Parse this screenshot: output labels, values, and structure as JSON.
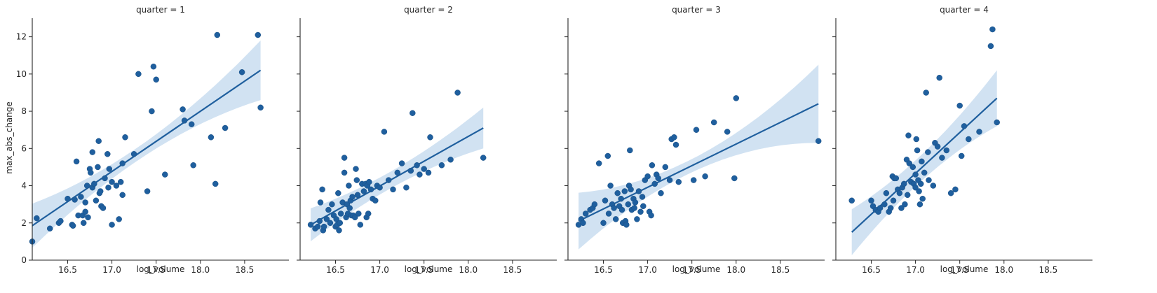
{
  "chart_data": {
    "type": "scatter",
    "facet_variable": "quarter",
    "xlabel": "log_volume",
    "ylabel": "max_abs_change",
    "xlim": [
      16.1,
      19.0
    ],
    "ylim": [
      0,
      13
    ],
    "xticks": [
      16.5,
      17.0,
      17.5,
      18.0,
      18.5
    ],
    "yticks": [
      0,
      2,
      4,
      6,
      8,
      10,
      12
    ],
    "grid": false,
    "colors": {
      "points": "#1f5f9e",
      "line": "#1f5f9e",
      "band": "#c6dbef"
    },
    "panels": [
      {
        "title": "quarter = 1",
        "fit": {
          "x": [
            16.1,
            18.68
          ],
          "y": [
            1.85,
            10.2
          ],
          "band_half_width": [
            0.35,
            1.6
          ]
        },
        "points": [
          [
            16.1,
            1.0
          ],
          [
            16.15,
            2.25
          ],
          [
            16.3,
            1.7
          ],
          [
            16.4,
            2.0
          ],
          [
            16.42,
            2.1
          ],
          [
            16.5,
            3.3
          ],
          [
            16.55,
            1.9
          ],
          [
            16.56,
            1.85
          ],
          [
            16.58,
            3.25
          ],
          [
            16.6,
            5.3
          ],
          [
            16.62,
            2.4
          ],
          [
            16.65,
            3.4
          ],
          [
            16.67,
            2.4
          ],
          [
            16.68,
            2.0
          ],
          [
            16.7,
            3.1
          ],
          [
            16.7,
            2.6
          ],
          [
            16.72,
            4.0
          ],
          [
            16.73,
            2.3
          ],
          [
            16.75,
            4.9
          ],
          [
            16.76,
            4.7
          ],
          [
            16.78,
            3.9
          ],
          [
            16.78,
            5.8
          ],
          [
            16.8,
            4.1
          ],
          [
            16.82,
            3.2
          ],
          [
            16.84,
            5.0
          ],
          [
            16.85,
            6.4
          ],
          [
            16.86,
            3.6
          ],
          [
            16.87,
            3.7
          ],
          [
            16.88,
            2.9
          ],
          [
            16.9,
            2.8
          ],
          [
            16.92,
            4.4
          ],
          [
            16.95,
            5.7
          ],
          [
            16.96,
            3.9
          ],
          [
            16.97,
            4.9
          ],
          [
            17.0,
            1.9
          ],
          [
            17.0,
            4.2
          ],
          [
            17.05,
            4.0
          ],
          [
            17.08,
            2.2
          ],
          [
            17.1,
            4.2
          ],
          [
            17.12,
            5.2
          ],
          [
            17.12,
            3.5
          ],
          [
            17.15,
            6.6
          ],
          [
            17.25,
            5.7
          ],
          [
            17.3,
            10.0
          ],
          [
            17.4,
            3.7
          ],
          [
            17.45,
            8.0
          ],
          [
            17.47,
            10.4
          ],
          [
            17.5,
            9.7
          ],
          [
            17.6,
            4.6
          ],
          [
            17.8,
            8.1
          ],
          [
            17.82,
            7.5
          ],
          [
            17.9,
            7.3
          ],
          [
            17.92,
            5.1
          ],
          [
            18.12,
            6.6
          ],
          [
            18.17,
            4.1
          ],
          [
            18.19,
            12.1
          ],
          [
            18.28,
            7.1
          ],
          [
            18.47,
            10.1
          ],
          [
            18.65,
            12.1
          ],
          [
            18.68,
            8.2
          ]
        ]
      },
      {
        "title": "quarter = 2",
        "fit": {
          "x": [
            16.22,
            18.17
          ],
          "y": [
            1.9,
            7.1
          ],
          "band_half_width": [
            0.45,
            1.1
          ]
        },
        "points": [
          [
            16.22,
            1.9
          ],
          [
            16.27,
            1.7
          ],
          [
            16.3,
            1.8
          ],
          [
            16.32,
            2.1
          ],
          [
            16.33,
            3.1
          ],
          [
            16.35,
            3.8
          ],
          [
            16.36,
            1.6
          ],
          [
            16.37,
            1.8
          ],
          [
            16.4,
            2.2
          ],
          [
            16.42,
            2.7
          ],
          [
            16.44,
            2.0
          ],
          [
            16.46,
            3.0
          ],
          [
            16.48,
            2.4
          ],
          [
            16.5,
            1.8
          ],
          [
            16.51,
            2.2
          ],
          [
            16.52,
            1.9
          ],
          [
            16.53,
            3.6
          ],
          [
            16.54,
            1.6
          ],
          [
            16.55,
            2.0
          ],
          [
            16.56,
            2.5
          ],
          [
            16.58,
            3.1
          ],
          [
            16.6,
            4.7
          ],
          [
            16.6,
            5.5
          ],
          [
            16.62,
            2.3
          ],
          [
            16.63,
            3.0
          ],
          [
            16.64,
            2.5
          ],
          [
            16.65,
            4.0
          ],
          [
            16.66,
            2.8
          ],
          [
            16.67,
            3.2
          ],
          [
            16.68,
            2.4
          ],
          [
            16.69,
            3.4
          ],
          [
            16.7,
            2.4
          ],
          [
            16.72,
            2.3
          ],
          [
            16.73,
            4.9
          ],
          [
            16.74,
            4.3
          ],
          [
            16.75,
            3.5
          ],
          [
            16.76,
            2.5
          ],
          [
            16.78,
            1.9
          ],
          [
            16.8,
            4.1
          ],
          [
            16.82,
            3.7
          ],
          [
            16.84,
            4.1
          ],
          [
            16.85,
            2.3
          ],
          [
            16.86,
            4.0
          ],
          [
            16.87,
            2.5
          ],
          [
            16.88,
            4.2
          ],
          [
            16.9,
            3.8
          ],
          [
            16.92,
            3.3
          ],
          [
            16.95,
            3.2
          ],
          [
            16.97,
            4.0
          ],
          [
            17.0,
            3.9
          ],
          [
            17.05,
            6.9
          ],
          [
            17.1,
            4.3
          ],
          [
            17.15,
            3.8
          ],
          [
            17.2,
            4.7
          ],
          [
            17.25,
            5.2
          ],
          [
            17.3,
            3.9
          ],
          [
            17.35,
            4.8
          ],
          [
            17.37,
            7.9
          ],
          [
            17.42,
            5.1
          ],
          [
            17.45,
            4.6
          ],
          [
            17.5,
            4.9
          ],
          [
            17.55,
            4.7
          ],
          [
            17.57,
            6.6
          ],
          [
            17.7,
            5.1
          ],
          [
            17.8,
            5.4
          ],
          [
            17.88,
            9.0
          ],
          [
            18.17,
            5.5
          ]
        ]
      },
      {
        "title": "quarter = 3",
        "fit": {
          "x": [
            16.22,
            18.93
          ],
          "y": [
            2.1,
            8.4
          ],
          "band_half_width": [
            0.35,
            2.1
          ]
        },
        "points": [
          [
            16.22,
            1.9
          ],
          [
            16.25,
            2.2
          ],
          [
            16.27,
            2.0
          ],
          [
            16.3,
            2.5
          ],
          [
            16.35,
            2.7
          ],
          [
            16.38,
            2.8
          ],
          [
            16.4,
            3.0
          ],
          [
            16.45,
            5.2
          ],
          [
            16.5,
            2.0
          ],
          [
            16.52,
            3.2
          ],
          [
            16.55,
            5.6
          ],
          [
            16.56,
            2.5
          ],
          [
            16.58,
            4.0
          ],
          [
            16.6,
            3.0
          ],
          [
            16.62,
            2.8
          ],
          [
            16.64,
            2.2
          ],
          [
            16.66,
            3.6
          ],
          [
            16.68,
            2.9
          ],
          [
            16.7,
            3.3
          ],
          [
            16.71,
            2.7
          ],
          [
            16.72,
            2.0
          ],
          [
            16.74,
            3.7
          ],
          [
            16.75,
            2.1
          ],
          [
            16.76,
            1.9
          ],
          [
            16.78,
            3.0
          ],
          [
            16.79,
            4.0
          ],
          [
            16.8,
            5.9
          ],
          [
            16.81,
            3.8
          ],
          [
            16.82,
            2.7
          ],
          [
            16.84,
            3.3
          ],
          [
            16.85,
            2.8
          ],
          [
            16.86,
            3.1
          ],
          [
            16.88,
            2.2
          ],
          [
            16.9,
            3.7
          ],
          [
            16.92,
            2.6
          ],
          [
            16.94,
            3.4
          ],
          [
            16.95,
            2.9
          ],
          [
            16.97,
            4.3
          ],
          [
            17.0,
            4.5
          ],
          [
            17.02,
            2.6
          ],
          [
            17.04,
            2.4
          ],
          [
            17.05,
            5.1
          ],
          [
            17.08,
            4.1
          ],
          [
            17.1,
            4.6
          ],
          [
            17.12,
            4.4
          ],
          [
            17.15,
            3.6
          ],
          [
            17.2,
            5.0
          ],
          [
            17.25,
            4.3
          ],
          [
            17.27,
            6.5
          ],
          [
            17.3,
            6.6
          ],
          [
            17.32,
            6.2
          ],
          [
            17.35,
            4.2
          ],
          [
            17.52,
            4.3
          ],
          [
            17.55,
            7.0
          ],
          [
            17.65,
            4.5
          ],
          [
            17.75,
            7.4
          ],
          [
            17.9,
            6.9
          ],
          [
            17.98,
            4.4
          ],
          [
            18.0,
            8.7
          ],
          [
            18.93,
            6.4
          ]
        ]
      },
      {
        "title": "quarter = 4",
        "fit": {
          "x": [
            16.28,
            17.92
          ],
          "y": [
            1.5,
            8.7
          ],
          "band_half_width": [
            0.7,
            1.5
          ]
        },
        "points": [
          [
            16.28,
            3.2
          ],
          [
            16.5,
            3.2
          ],
          [
            16.52,
            2.9
          ],
          [
            16.55,
            2.7
          ],
          [
            16.58,
            2.6
          ],
          [
            16.6,
            2.8
          ],
          [
            16.65,
            3.0
          ],
          [
            16.67,
            3.6
          ],
          [
            16.7,
            2.6
          ],
          [
            16.72,
            2.8
          ],
          [
            16.74,
            4.5
          ],
          [
            16.75,
            3.2
          ],
          [
            16.76,
            4.4
          ],
          [
            16.78,
            4.4
          ],
          [
            16.8,
            3.8
          ],
          [
            16.82,
            3.6
          ],
          [
            16.84,
            2.8
          ],
          [
            16.85,
            3.9
          ],
          [
            16.87,
            4.1
          ],
          [
            16.88,
            3.0
          ],
          [
            16.9,
            5.4
          ],
          [
            16.91,
            3.5
          ],
          [
            16.92,
            6.7
          ],
          [
            16.93,
            5.2
          ],
          [
            16.95,
            4.2
          ],
          [
            16.97,
            5.0
          ],
          [
            16.98,
            4.1
          ],
          [
            17.0,
            4.6
          ],
          [
            17.0,
            3.9
          ],
          [
            17.01,
            6.5
          ],
          [
            17.02,
            5.9
          ],
          [
            17.03,
            4.3
          ],
          [
            17.04,
            3.7
          ],
          [
            17.05,
            3.0
          ],
          [
            17.06,
            4.1
          ],
          [
            17.07,
            5.3
          ],
          [
            17.08,
            3.3
          ],
          [
            17.1,
            4.7
          ],
          [
            17.12,
            9.0
          ],
          [
            17.14,
            5.8
          ],
          [
            17.15,
            4.3
          ],
          [
            17.2,
            4.0
          ],
          [
            17.22,
            6.3
          ],
          [
            17.25,
            6.1
          ],
          [
            17.27,
            9.8
          ],
          [
            17.3,
            5.5
          ],
          [
            17.35,
            5.9
          ],
          [
            17.4,
            3.6
          ],
          [
            17.45,
            3.8
          ],
          [
            17.5,
            8.3
          ],
          [
            17.52,
            5.6
          ],
          [
            17.55,
            7.2
          ],
          [
            17.6,
            6.5
          ],
          [
            17.72,
            6.9
          ],
          [
            17.85,
            11.5
          ],
          [
            17.87,
            12.4
          ],
          [
            17.92,
            7.4
          ]
        ]
      }
    ]
  }
}
